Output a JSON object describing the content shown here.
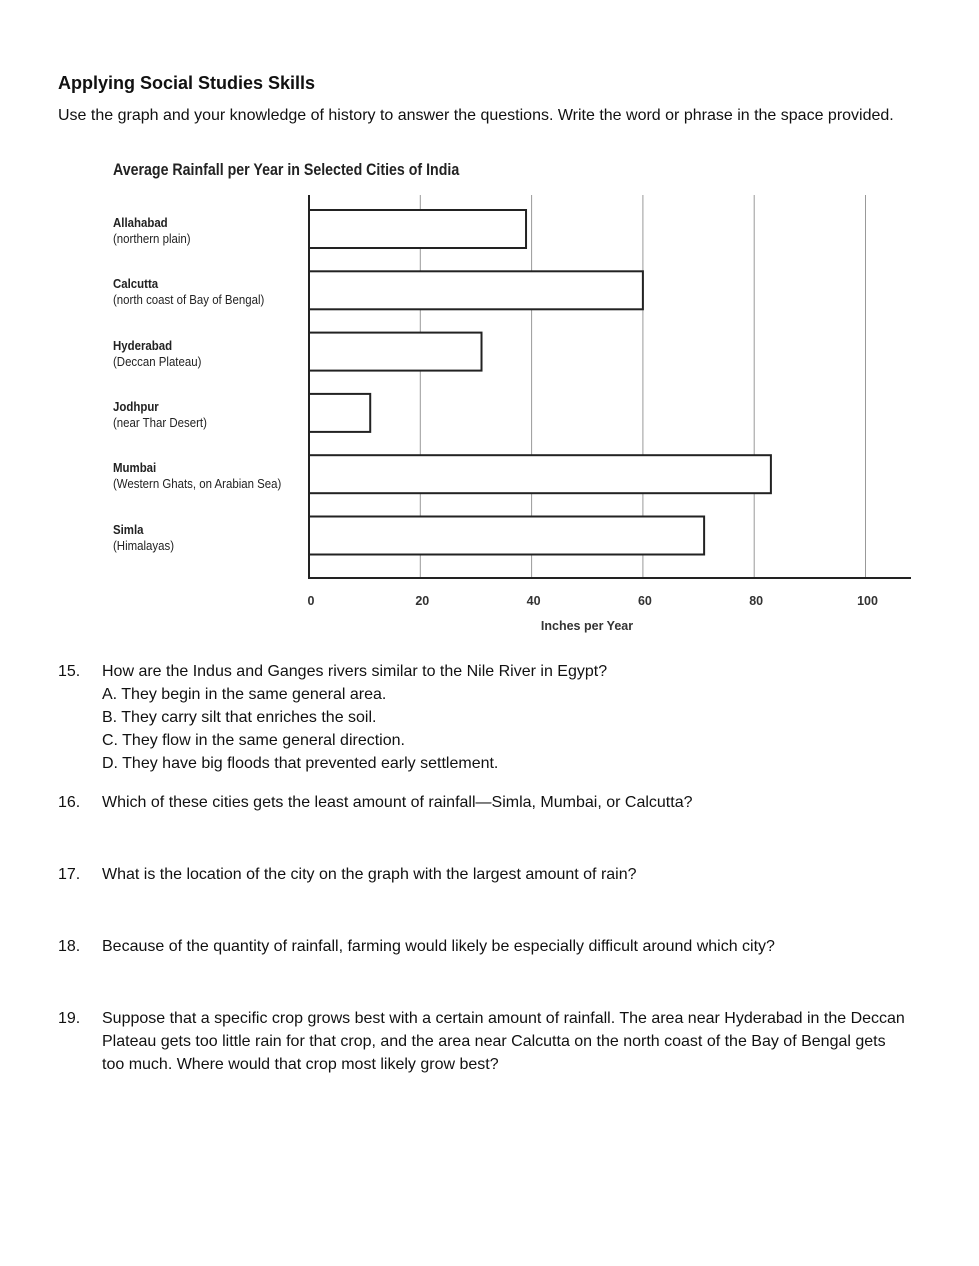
{
  "heading": "Applying Social Studies Skills",
  "instructions": "Use the graph and your knowledge of history to answer the questions. Write the word or phrase in the space provided.",
  "chart_data": {
    "type": "bar",
    "orientation": "horizontal",
    "title": "Average Rainfall per Year in Selected Cities of India",
    "xlabel": "Inches per Year",
    "ylabel": "",
    "categories": [
      {
        "name": "Allahabad",
        "note": "(northern plain)"
      },
      {
        "name": "Calcutta",
        "note": "(north coast of Bay of Bengal)"
      },
      {
        "name": "Hyderabad",
        "note": "(Deccan Plateau)"
      },
      {
        "name": "Jodhpur",
        "note": "(near Thar Desert)"
      },
      {
        "name": "Mumbai",
        "note": "(Western Ghats, on Arabian Sea)"
      },
      {
        "name": "Simla",
        "note": "(Himalayas)"
      }
    ],
    "values": [
      39,
      60,
      31,
      11,
      83,
      71
    ],
    "xlim": [
      0,
      100
    ],
    "xticks": [
      "0",
      "20",
      "40",
      "60",
      "80",
      "100"
    ],
    "grid": true,
    "bar_fill": "#ffffff",
    "bar_stroke": "#222222",
    "grid_color": "#999999"
  },
  "questions": [
    {
      "number": "15.",
      "text": "How are the Indus and Ganges rivers similar to the Nile River in Egypt?",
      "options": [
        "A. They begin in the same general area.",
        "B. They carry silt that enriches the soil.",
        "C. They flow in the same general direction.",
        "D. They have big floods that prevented early settlement."
      ]
    },
    {
      "number": "16.",
      "text": "Which of these cities gets the least amount of rainfall—Simla, Mumbai, or Calcutta?",
      "options": []
    },
    {
      "number": "17.",
      "text": "What is the location of the city on the graph with the largest amount of rain?",
      "options": []
    },
    {
      "number": "18.",
      "text": "Because of the quantity of rainfall, farming would likely be especially difficult around which city?",
      "options": []
    },
    {
      "number": "19.",
      "text": "Suppose that a specific crop grows best with a certain amount of rainfall. The area near Hyderabad in the Deccan Plateau gets too little rain for that crop, and the area near Calcutta on the north coast of the Bay of Bengal gets too much. Where would that crop most likely grow best?",
      "options": []
    }
  ]
}
